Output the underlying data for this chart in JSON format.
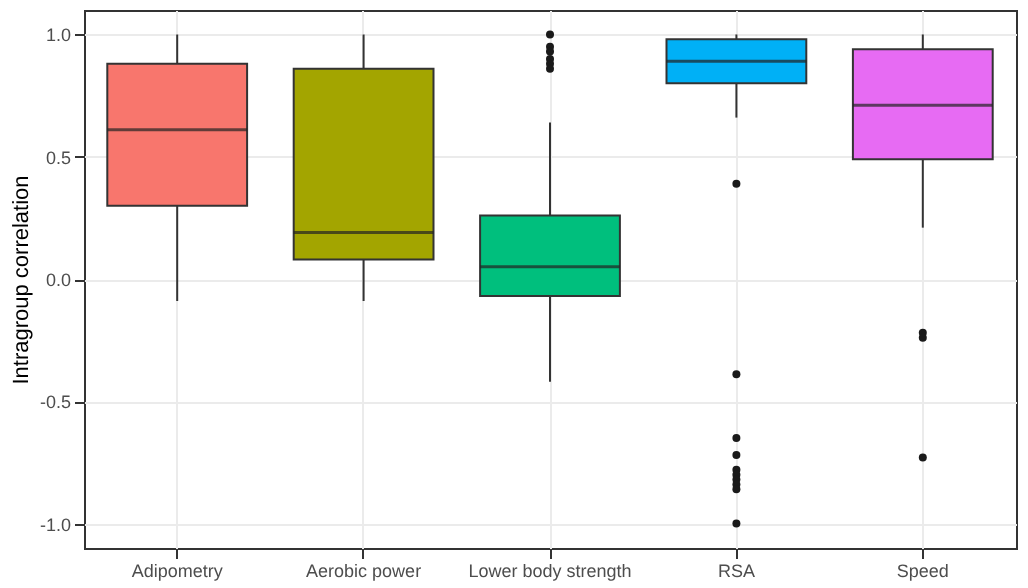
{
  "chart_data": {
    "type": "box",
    "ylabel": "Intragroup correlation",
    "categories": [
      "Adipometry",
      "Aerobic power",
      "Lower body strength",
      "RSA",
      "Speed"
    ],
    "colors": [
      "#f8766d",
      "#a3a500",
      "#00bf7d",
      "#00b0f6",
      "#e76bf3"
    ],
    "boxes": [
      {
        "low": -0.09,
        "q1": 0.3,
        "median": 0.61,
        "q3": 0.88,
        "high": 1.0
      },
      {
        "low": -0.09,
        "q1": 0.08,
        "median": 0.19,
        "q3": 0.86,
        "high": 1.0
      },
      {
        "low": -0.42,
        "q1": -0.07,
        "median": 0.05,
        "q3": 0.26,
        "high": 0.64,
        "outliers": [
          1.0,
          0.95,
          0.93,
          0.9,
          0.88,
          0.86
        ]
      },
      {
        "low": 0.66,
        "q1": 0.8,
        "median": 0.89,
        "q3": 0.98,
        "high": 1.0,
        "outliers": [
          0.39,
          -0.39,
          -0.65,
          -0.72,
          -0.78,
          -0.8,
          -0.82,
          -0.84,
          -0.86,
          -1.0
        ]
      },
      {
        "low": 0.21,
        "q1": 0.49,
        "median": 0.71,
        "q3": 0.94,
        "high": 1.0,
        "outliers": [
          -0.22,
          -0.24,
          -0.73
        ]
      }
    ],
    "ylim": [
      -1.1,
      1.1
    ],
    "yticks": [
      {
        "value": -1,
        "label": "-1.0"
      },
      -0.5,
      {
        "value": 0,
        "label": "0.0"
      },
      0.5,
      {
        "value": 1,
        "label": "1.0"
      }
    ],
    "grid": true,
    "legend": false
  }
}
